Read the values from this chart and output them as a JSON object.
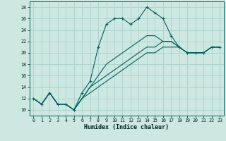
{
  "xlabel": "Humidex (Indice chaleur)",
  "background_color": "#cce8e0",
  "grid_color": "#aed4cc",
  "line_color": "#006060",
  "xlim": [
    -0.5,
    23.5
  ],
  "ylim": [
    9.0,
    29.0
  ],
  "xticks": [
    0,
    1,
    2,
    3,
    4,
    5,
    6,
    7,
    8,
    9,
    10,
    11,
    12,
    13,
    14,
    15,
    16,
    17,
    18,
    19,
    20,
    21,
    22,
    23
  ],
  "yticks": [
    10,
    12,
    14,
    16,
    18,
    20,
    22,
    24,
    26,
    28
  ],
  "series": [
    [
      12,
      11,
      13,
      11,
      11,
      10,
      13,
      15,
      21,
      25,
      26,
      26,
      25,
      26,
      28,
      27,
      26,
      23,
      21,
      20,
      20,
      20,
      21,
      21
    ],
    [
      12,
      11,
      13,
      11,
      11,
      10,
      12,
      14,
      16,
      18,
      19,
      20,
      21,
      22,
      23,
      23,
      22,
      22,
      21,
      20,
      20,
      20,
      21,
      21
    ],
    [
      12,
      11,
      13,
      11,
      11,
      10,
      12,
      14,
      15,
      16,
      17,
      18,
      19,
      20,
      21,
      21,
      22,
      22,
      21,
      20,
      20,
      20,
      21,
      21
    ],
    [
      12,
      11,
      13,
      11,
      11,
      10,
      12,
      13,
      14,
      15,
      16,
      17,
      18,
      19,
      20,
      20,
      21,
      21,
      21,
      20,
      20,
      20,
      21,
      21
    ]
  ],
  "marker_series": 0
}
